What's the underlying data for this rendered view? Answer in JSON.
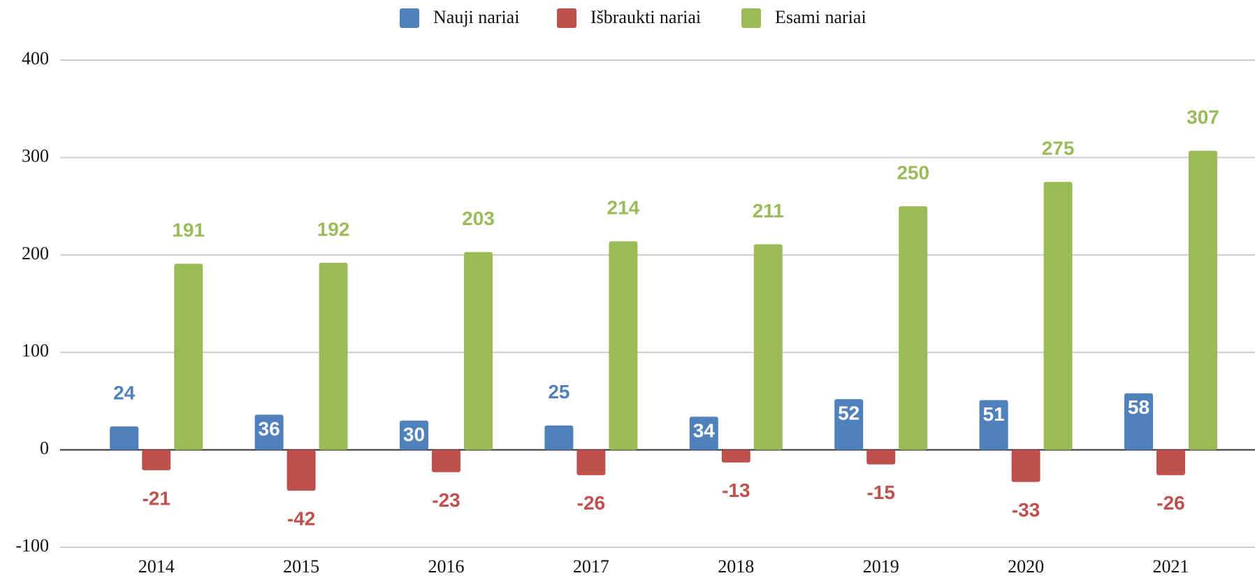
{
  "chart_data": {
    "type": "bar",
    "categories": [
      "2014",
      "2015",
      "2016",
      "2017",
      "2018",
      "2019",
      "2020",
      "2021"
    ],
    "series": [
      {
        "name": "Nauji nariai",
        "color": "#4f81bd",
        "values": [
          24,
          36,
          30,
          25,
          34,
          52,
          51,
          58
        ]
      },
      {
        "name": "Išbraukti nariai",
        "color": "#c0504d",
        "values": [
          -21,
          -42,
          -23,
          -26,
          -13,
          -15,
          -33,
          -26
        ]
      },
      {
        "name": "Esami nariai",
        "color": "#9bbb59",
        "values": [
          191,
          192,
          203,
          214,
          211,
          250,
          275,
          307
        ]
      }
    ],
    "ylim": [
      -100,
      400
    ],
    "yticks": [
      -100,
      0,
      100,
      200,
      300,
      400
    ],
    "grid": true,
    "legend": "top"
  }
}
